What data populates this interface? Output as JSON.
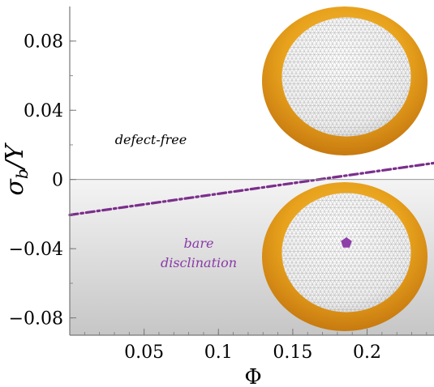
{
  "chart_data": {
    "type": "line",
    "x": [
      0.0,
      0.245
    ],
    "series": [
      {
        "values": [
          -0.0205,
          0.0095
        ],
        "color": "#7b2e8c",
        "style": "dash-dot"
      }
    ],
    "xlabel": "Φ",
    "ylabel": "σb/Y",
    "xlim": [
      0.0,
      0.245
    ],
    "ylim": [
      -0.09,
      0.1
    ],
    "xticks": [
      {
        "value": 0.05,
        "label": "0.05"
      },
      {
        "value": 0.1,
        "label": "0.1"
      },
      {
        "value": 0.15,
        "label": "0.15"
      },
      {
        "value": 0.2,
        "label": "0.2"
      }
    ],
    "yticks": [
      {
        "value": 0.08,
        "label": "0.08"
      },
      {
        "value": 0.04,
        "label": "0.04"
      },
      {
        "value": 0,
        "label": "0"
      },
      {
        "value": -0.04,
        "label": "−0.04"
      },
      {
        "value": -0.08,
        "label": "−0.08"
      }
    ],
    "annotations": [
      {
        "text": "defect-free",
        "color": "#000000"
      },
      {
        "text": "bare",
        "color": "#8a3aa8"
      },
      {
        "text": "disclination",
        "color": "#8a3aa8"
      }
    ],
    "grid": false,
    "shaded_region": "below y = 0 (gray gradient)",
    "insets": [
      "upper: crystalline spherical cap, defect-free",
      "lower: cap with central purple disclination"
    ],
    "colors": {
      "line": "#7b2e8c",
      "shell": "#e8a51f",
      "defect": "#8e3fa8"
    }
  }
}
